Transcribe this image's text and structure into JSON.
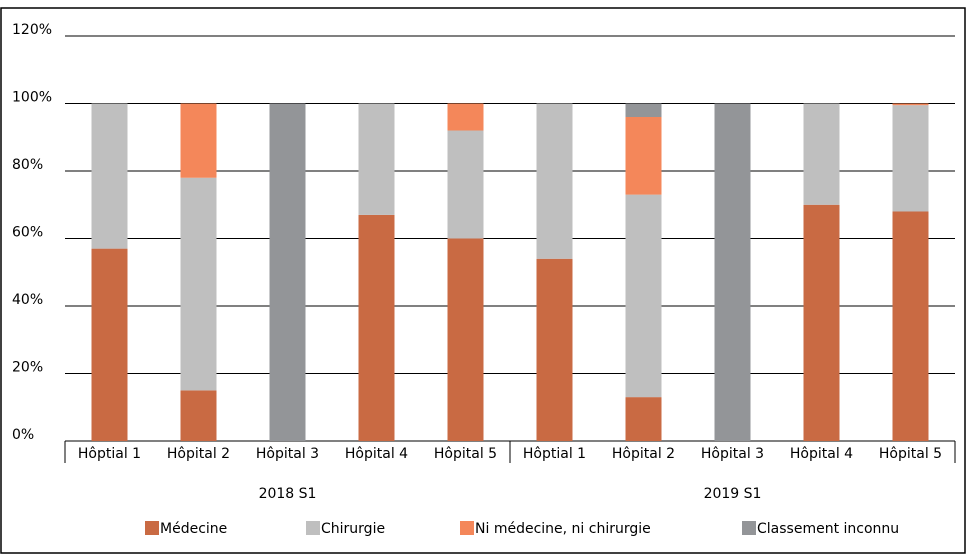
{
  "chart_data": {
    "type": "stacked_bar",
    "groups": [
      {
        "name": "2018 S1",
        "categories": [
          "Hôptial 1",
          "Hôpital 2",
          "Hôpital 3",
          "Hôpital 4",
          "Hôpital 5"
        ]
      },
      {
        "name": "2019 S1",
        "categories": [
          "Hôptial 1",
          "Hôpital 2",
          "Hôpital 3",
          "Hôpital 4",
          "Hôpital 5"
        ]
      }
    ],
    "series": [
      {
        "name": "Médecine",
        "color": "#c96a43",
        "values": [
          57,
          15,
          0,
          67,
          60,
          54,
          13,
          0,
          70,
          68
        ]
      },
      {
        "name": "Chirurgie",
        "color": "#bfbfbf",
        "values": [
          43,
          63,
          0,
          33,
          32,
          46,
          60,
          0,
          30,
          31.5
        ]
      },
      {
        "name": "Ni médecine, ni chirurgie",
        "color": "#f4875a",
        "values": [
          0,
          22,
          0,
          0,
          8,
          0,
          23,
          0,
          0,
          0.5
        ]
      },
      {
        "name": "Classement inconnu",
        "color": "#939598",
        "values": [
          0,
          0,
          100,
          0,
          0,
          0,
          4,
          100,
          0,
          0
        ]
      }
    ],
    "ylim": [
      0,
      120
    ],
    "yticks": [
      {
        "value": 0,
        "label": "0%"
      },
      {
        "value": 20,
        "label": "20%"
      },
      {
        "value": 40,
        "label": "40%"
      },
      {
        "value": 60,
        "label": "60%"
      },
      {
        "value": 80,
        "label": "80%"
      },
      {
        "value": 100,
        "label": "100%"
      },
      {
        "value": 120,
        "label": "120%"
      }
    ],
    "grid": true
  }
}
